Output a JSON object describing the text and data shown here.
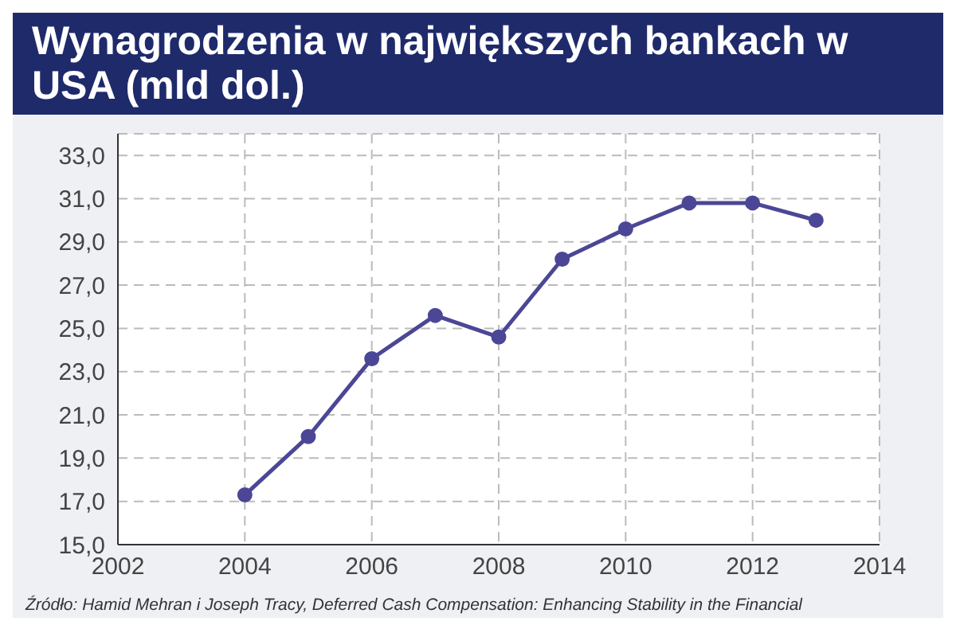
{
  "chart_data": {
    "type": "line",
    "title": "Wynagrodzenia w największych bankach w USA (mld dol.)",
    "x": [
      2004,
      2005,
      2006,
      2007,
      2008,
      2009,
      2010,
      2011,
      2012,
      2013
    ],
    "series": [
      {
        "color": "#4b4796",
        "values": [
          17.3,
          20.0,
          23.6,
          25.6,
          24.6,
          28.2,
          29.6,
          30.8,
          30.8,
          30.0
        ]
      }
    ],
    "xlim": [
      2002,
      2014
    ],
    "xticks": [
      2002,
      2004,
      2006,
      2008,
      2010,
      2012,
      2014
    ],
    "ylim": [
      15,
      34
    ],
    "yticks": [
      {
        "value": 15,
        "label": "15,0"
      },
      {
        "value": 17,
        "label": "17,0"
      },
      {
        "value": 19,
        "label": "19,0"
      },
      {
        "value": 21,
        "label": "21,0"
      },
      {
        "value": 23,
        "label": "23,0"
      },
      {
        "value": 25,
        "label": "25,0"
      },
      {
        "value": 27,
        "label": "27,0"
      },
      {
        "value": 29,
        "label": "29,0"
      },
      {
        "value": 31,
        "label": "31,0"
      },
      {
        "value": 33,
        "label": "33,0"
      }
    ],
    "grid": true,
    "marker": "circle",
    "line_style": "solid",
    "annotations": [
      "Źródło: Hamid Mehran i Joseph Tracy, Deferred Cash Compensation: Enhancing Stability in the Financial"
    ]
  }
}
